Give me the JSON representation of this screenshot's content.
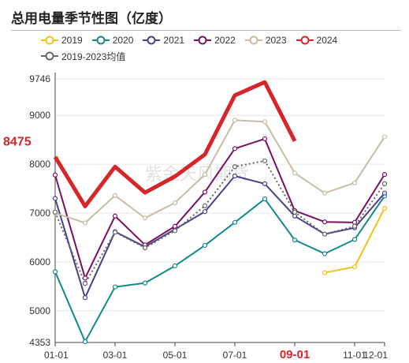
{
  "title": "总用电量季节性图（亿度）",
  "watermark": "紫金天风期货",
  "chart_data": {
    "type": "line",
    "categories": [
      "01-01",
      "02-01",
      "03-01",
      "04-01",
      "05-01",
      "06-01",
      "07-01",
      "08-01",
      "09-01",
      "10-01",
      "11-01",
      "12-01"
    ],
    "x_tick_labels": [
      "01-01",
      "03-01",
      "05-01",
      "07-01",
      "09-01",
      "11-01",
      "12-01"
    ],
    "highlight_x_label": "09-01",
    "y_tick_labels": [
      "4353",
      "5000",
      "6000",
      "7000",
      "8000",
      "9000",
      "9746"
    ],
    "ylim": [
      4353,
      9746
    ],
    "highlight_value": "8475",
    "series": [
      {
        "name": "2019",
        "color": "#f2c21a",
        "width": 2,
        "dash": false,
        "values": [
          null,
          null,
          null,
          null,
          null,
          null,
          null,
          null,
          null,
          5780,
          5900,
          7100
        ]
      },
      {
        "name": "2020",
        "color": "#138a8a",
        "width": 2,
        "dash": false,
        "values": [
          5800,
          4370,
          5490,
          5570,
          5920,
          6340,
          6810,
          7290,
          6450,
          6170,
          6460,
          7350
        ]
      },
      {
        "name": "2021",
        "color": "#4b3f8c",
        "width": 2,
        "dash": false,
        "values": [
          7300,
          5270,
          6620,
          6310,
          6670,
          7030,
          7760,
          7600,
          6940,
          6570,
          6700,
          7410
        ]
      },
      {
        "name": "2022",
        "color": "#7a1060",
        "width": 2,
        "dash": false,
        "values": [
          7780,
          5670,
          6940,
          6350,
          6730,
          7430,
          8320,
          8520,
          7050,
          6820,
          6810,
          7790
        ]
      },
      {
        "name": "2023",
        "color": "#c8bca8",
        "width": 2,
        "dash": false,
        "values": [
          7000,
          6800,
          7360,
          6900,
          7210,
          7790,
          8900,
          8870,
          7820,
          7410,
          7620,
          8560
        ]
      },
      {
        "name": "2024",
        "color": "#d7262a",
        "width": 5,
        "dash": false,
        "values": [
          8150,
          7140,
          7950,
          7420,
          7750,
          8200,
          9410,
          9680,
          8475,
          null,
          null,
          null
        ]
      },
      {
        "name": "2019-2023均值",
        "color": "#666666",
        "width": 2,
        "dash": true,
        "values": [
          7020,
          5560,
          6610,
          6290,
          6640,
          7150,
          7950,
          8070,
          7020,
          6570,
          6730,
          7600
        ]
      }
    ]
  }
}
